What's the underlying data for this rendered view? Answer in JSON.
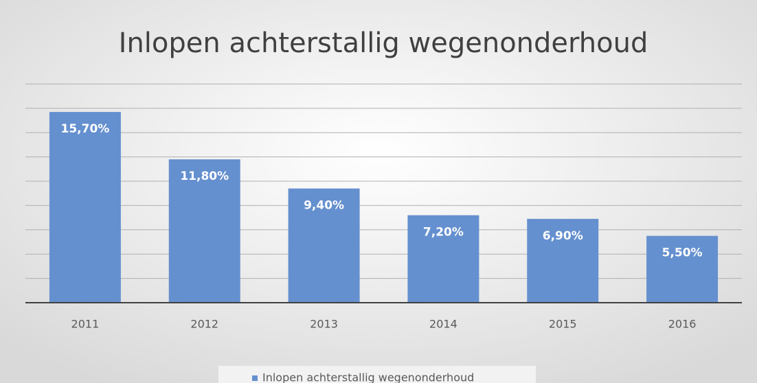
{
  "chart_data": {
    "type": "bar",
    "title": "Inlopen achterstallig wegenonderhoud",
    "categories": [
      "2011",
      "2012",
      "2013",
      "2014",
      "2015",
      "2016"
    ],
    "series": [
      {
        "name": "Inlopen achterstallig wegenonderhoud",
        "color": "#6590cf",
        "values": [
          15.7,
          11.8,
          9.4,
          7.2,
          6.9,
          5.5
        ],
        "value_labels": [
          "15,70%",
          "11,80%",
          "9,40%",
          "7,20%",
          "6,90%",
          "5,50%"
        ]
      }
    ],
    "ylim": [
      0,
      18
    ],
    "yticks": [
      0,
      2,
      4,
      6,
      8,
      10,
      12,
      14,
      16,
      18
    ],
    "grid": true,
    "legend": "bottom"
  }
}
